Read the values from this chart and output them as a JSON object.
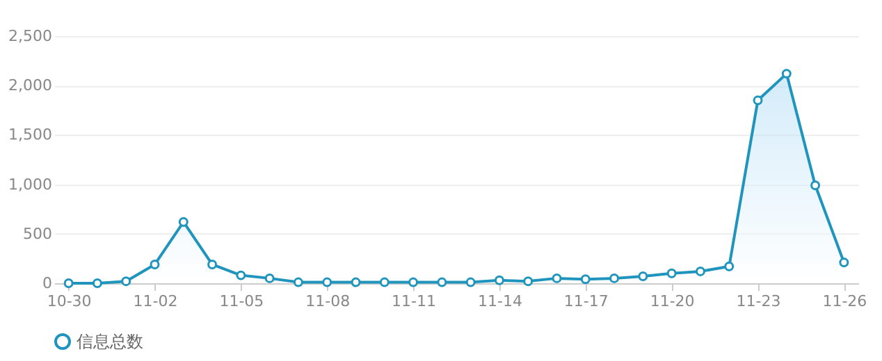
{
  "chart_data": {
    "type": "area",
    "categories": [
      "10-30",
      null,
      null,
      "11-02",
      null,
      null,
      "11-05",
      null,
      null,
      "11-08",
      null,
      null,
      "11-11",
      null,
      null,
      "11-14",
      null,
      null,
      "11-17",
      null,
      null,
      "11-20",
      null,
      null,
      "11-23",
      null,
      null,
      "11-26"
    ],
    "series": [
      {
        "name": "信息总数",
        "color": "#1f95be",
        "values": [
          0,
          0,
          20,
          190,
          620,
          190,
          80,
          50,
          10,
          10,
          10,
          10,
          10,
          10,
          10,
          30,
          20,
          50,
          40,
          50,
          70,
          100,
          120,
          170,
          1850,
          2120,
          990,
          210
        ]
      }
    ],
    "ylim": [
      0,
      2500
    ],
    "yticks": [
      0,
      500,
      {
        "value": 1000,
        "label": "1,000"
      },
      {
        "value": 1500,
        "label": "1,500"
      },
      {
        "value": 2000,
        "label": "2,000"
      },
      {
        "value": 2500,
        "label": "2,500"
      }
    ],
    "grid": "y",
    "legend": "bottom",
    "marker": "circle"
  }
}
